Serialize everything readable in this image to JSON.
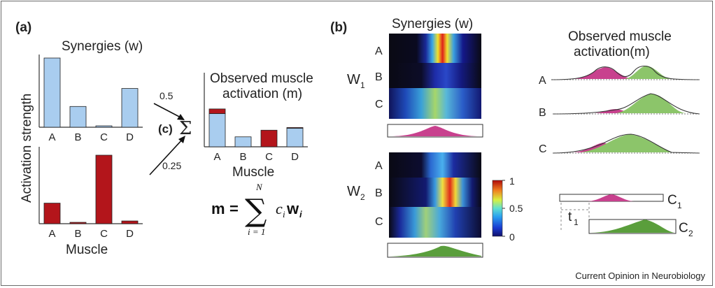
{
  "panel_a": {
    "label": "(a)",
    "synergies_title": "Synergies (w)",
    "ylabel": "Activation strength",
    "xlabel": "Muscle",
    "observed_title_line1": "Observed muscle",
    "observed_title_line2": "activation (m)",
    "observed_xlabel": "Muscle",
    "panel_c_label": "(c)",
    "sum_symbol": "Σ",
    "weight_1": "0.5",
    "weight_2": "0.25",
    "equation": {
      "lhs": "m",
      "equals": "=",
      "upper": "N",
      "lower": "i = 1",
      "sum": "∑",
      "term_c": "c",
      "term_c_sub": "i",
      "term_w": "w",
      "term_w_sub": "i"
    }
  },
  "panel_b": {
    "label": "(b)",
    "synergies_title": "Synergies (w)",
    "w1_label": "W",
    "w1_sub": "1",
    "w2_label": "W",
    "w2_sub": "2",
    "row_labels": [
      "A",
      "B",
      "C"
    ],
    "colorbar_ticks": [
      "1",
      "0.5",
      "0"
    ],
    "observed_title_line1": "Observed muscle",
    "observed_title_line2": "activation(m)",
    "observed_rows": [
      "A",
      "B",
      "C"
    ],
    "c1_label": "C",
    "c1_sub": "1",
    "c2_label": "C",
    "c2_sub": "2",
    "t1_label": "t",
    "t1_sub": "1"
  },
  "footer": "Current Opinion in Neurobiology",
  "colors": {
    "blue_bar": "#a9cdef",
    "red_bar": "#b3151b",
    "magenta": "#c8418e",
    "green": "#5a9e3c"
  },
  "chart_data": [
    {
      "type": "bar",
      "name_ref": "synergy_w1",
      "categories": [
        "A",
        "B",
        "C",
        "D"
      ],
      "values": [
        1.0,
        0.3,
        0.02,
        0.56
      ],
      "color": "#a9cdef"
    },
    {
      "type": "bar",
      "name_ref": "synergy_w2",
      "categories": [
        "A",
        "B",
        "C",
        "D"
      ],
      "values": [
        0.3,
        0.02,
        1.0,
        0.04
      ],
      "color": "#b3151b"
    },
    {
      "type": "bar",
      "name_ref": "observed_m",
      "stacked": true,
      "categories": [
        "A",
        "B",
        "C",
        "D"
      ],
      "series": [
        {
          "values": [
            0.5,
            0.15,
            0.0,
            0.28
          ],
          "color": "#a9cdef"
        },
        {
          "values": [
            0.07,
            0.0,
            0.25,
            0.01
          ],
          "color": "#b3151b"
        }
      ]
    }
  ]
}
